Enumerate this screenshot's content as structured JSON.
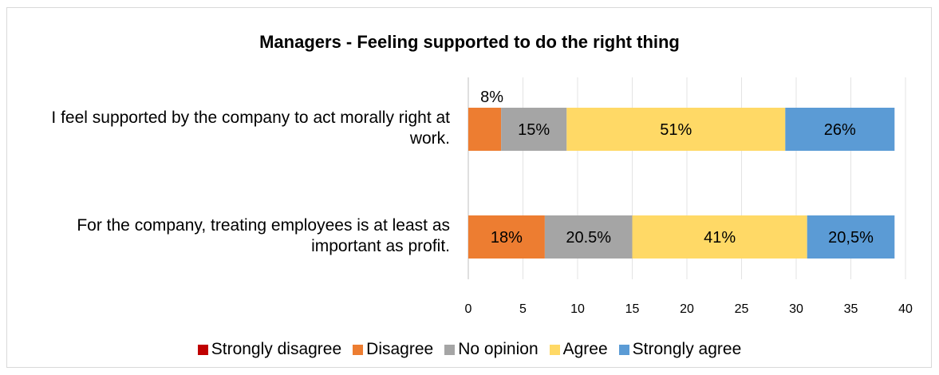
{
  "chart_data": {
    "type": "bar",
    "orientation": "horizontal",
    "stacked": true,
    "title": "Managers - Feeling supported to do the right thing",
    "xlabel": "",
    "ylabel": "",
    "xlim": [
      0,
      40
    ],
    "x_ticks": [
      "0",
      "5",
      "10",
      "15",
      "20",
      "25",
      "30",
      "35",
      "40"
    ],
    "grid": "vertical",
    "legend_position": "bottom",
    "categories": [
      "I feel supported by the company to act morally right at work.",
      "For the company, treating employees is at least as important as profit."
    ],
    "series": [
      {
        "name": "Strongly disagree",
        "color": "#c00000",
        "values": [
          0,
          0
        ],
        "labels": [
          "",
          ""
        ]
      },
      {
        "name": "Disagree",
        "color": "#ed7d31",
        "values": [
          3,
          7
        ],
        "labels": [
          "8%",
          "18%"
        ]
      },
      {
        "name": "No opinion",
        "color": "#a5a5a5",
        "values": [
          6,
          8
        ],
        "labels": [
          "15%",
          "20.5%"
        ]
      },
      {
        "name": "Agree",
        "color": "#ffd966",
        "values": [
          20,
          16
        ],
        "labels": [
          "51%",
          "41%"
        ]
      },
      {
        "name": "Strongly agree",
        "color": "#5b9bd5",
        "values": [
          10,
          8
        ],
        "labels": [
          "26%",
          "20,5%"
        ]
      }
    ]
  }
}
